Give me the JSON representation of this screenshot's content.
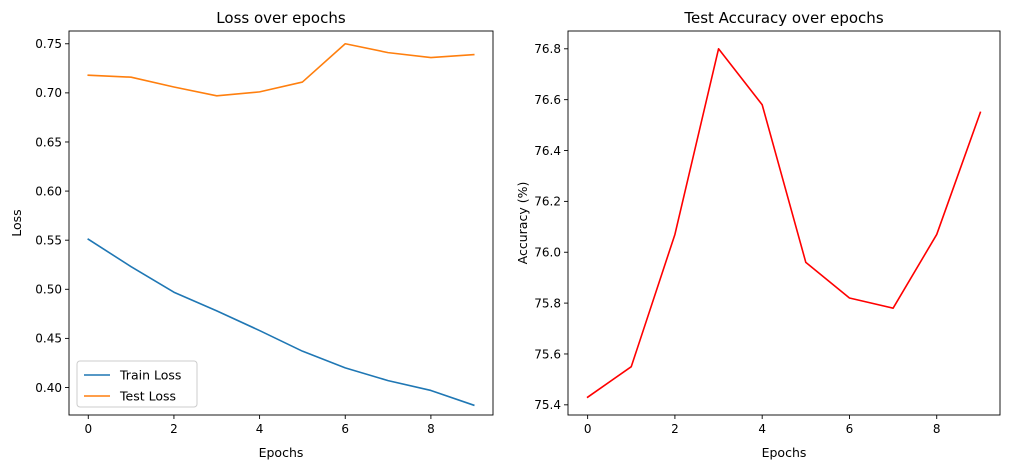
{
  "chart_data": [
    {
      "type": "line",
      "title": "Loss over epochs",
      "xlabel": "Epochs",
      "ylabel": "Loss",
      "x": [
        0,
        1,
        2,
        3,
        4,
        5,
        6,
        7,
        8,
        9
      ],
      "xlim": [
        -0.45,
        9.45
      ],
      "ylim": [
        0.372,
        0.763
      ],
      "xticks": [
        0,
        2,
        4,
        6,
        8
      ],
      "yticks": [
        0.4,
        0.45,
        0.5,
        0.55,
        0.6,
        0.65,
        0.7,
        0.75
      ],
      "yticks_fmt": 2,
      "grid": false,
      "legend": "lower-left",
      "series": [
        {
          "name": "Train Loss",
          "color": "#1f77b4",
          "values": [
            0.551,
            0.523,
            0.497,
            0.478,
            0.458,
            0.437,
            0.42,
            0.407,
            0.397,
            0.382
          ]
        },
        {
          "name": "Test Loss",
          "color": "#ff7f0e",
          "values": [
            0.718,
            0.716,
            0.706,
            0.697,
            0.701,
            0.711,
            0.75,
            0.741,
            0.736,
            0.739
          ]
        }
      ]
    },
    {
      "type": "line",
      "title": "Test Accuracy over epochs",
      "xlabel": "Epochs",
      "ylabel": "Accuracy (%)",
      "x": [
        0,
        1,
        2,
        3,
        4,
        5,
        6,
        7,
        8,
        9
      ],
      "xlim": [
        -0.45,
        9.45
      ],
      "ylim": [
        75.36,
        76.87
      ],
      "xticks": [
        0,
        2,
        4,
        6,
        8
      ],
      "yticks": [
        75.4,
        75.6,
        75.8,
        76.0,
        76.2,
        76.4,
        76.6,
        76.8
      ],
      "yticks_fmt": 1,
      "grid": false,
      "legend": "none",
      "series": [
        {
          "color": "#ff0000",
          "values": [
            75.43,
            75.55,
            76.07,
            76.8,
            76.58,
            75.96,
            75.82,
            75.78,
            76.07,
            76.55
          ]
        }
      ]
    }
  ]
}
